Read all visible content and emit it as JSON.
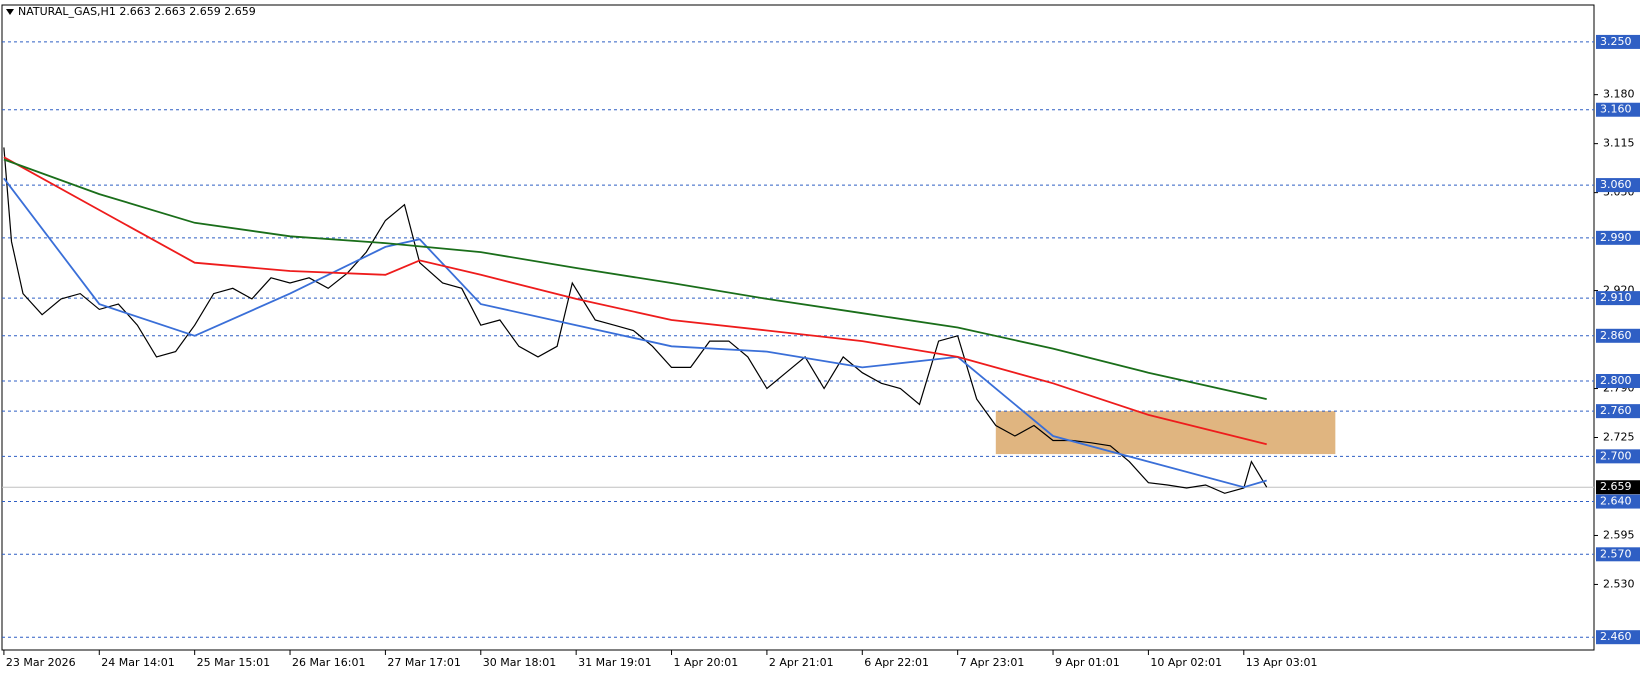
{
  "chart_data": {
    "type": "line",
    "title": "NATURAL_GAS,H1  2.663 2.663 2.659 2.659",
    "xlim": [
      -0.5,
      416.8
    ],
    "ylim": [
      2.443,
      3.299
    ],
    "xticks": [
      {
        "value": 0,
        "label": "23 Mar 2026"
      },
      {
        "value": 25,
        "label": "24 Mar 14:01"
      },
      {
        "value": 50,
        "label": "25 Mar 15:01"
      },
      {
        "value": 75,
        "label": "26 Mar 16:01"
      },
      {
        "value": 100,
        "label": "27 Mar 17:01"
      },
      {
        "value": 125,
        "label": "30 Mar 18:01"
      },
      {
        "value": 150,
        "label": "31 Mar 19:01"
      },
      {
        "value": 175,
        "label": "1 Apr 20:01"
      },
      {
        "value": 200,
        "label": "2 Apr 21:01"
      },
      {
        "value": 225,
        "label": "6 Apr 22:01"
      },
      {
        "value": 250,
        "label": "7 Apr 23:01"
      },
      {
        "value": 275,
        "label": "9 Apr 01:01"
      },
      {
        "value": 300,
        "label": "10 Apr 02:01"
      },
      {
        "value": 325,
        "label": "13 Apr 03:01"
      }
    ],
    "yticks": [
      {
        "value": 3.18,
        "label": "3.180"
      },
      {
        "value": 3.115,
        "label": "3.115"
      },
      {
        "value": 3.05,
        "label": "3.050"
      },
      {
        "value": 2.92,
        "label": "2.920"
      },
      {
        "value": 2.79,
        "label": "2.790"
      },
      {
        "value": 2.725,
        "label": "2.725"
      },
      {
        "value": 2.595,
        "label": "2.595"
      },
      {
        "value": 2.53,
        "label": "2.530"
      }
    ],
    "levels": [
      {
        "value": 3.25,
        "label": "3.250"
      },
      {
        "value": 3.16,
        "label": "3.160"
      },
      {
        "value": 3.06,
        "label": "3.060"
      },
      {
        "value": 2.99,
        "label": "2.990"
      },
      {
        "value": 2.91,
        "label": "2.910"
      },
      {
        "value": 2.86,
        "label": "2.860"
      },
      {
        "value": 2.8,
        "label": "2.800"
      },
      {
        "value": 2.76,
        "label": "2.760"
      },
      {
        "value": 2.7,
        "label": "2.700"
      },
      {
        "value": 2.64,
        "label": "2.640"
      },
      {
        "value": 2.57,
        "label": "2.570"
      },
      {
        "value": 2.46,
        "label": "2.460"
      }
    ],
    "level_color": "#2f5fc4",
    "current_price": {
      "value": 2.659,
      "label": "2.659"
    },
    "zone": {
      "x": [
        260,
        349
      ],
      "y": [
        2.703,
        2.76
      ],
      "color": "#e0b580"
    },
    "series": [
      {
        "color": "#000000",
        "x": [
          0,
          2,
          5,
          10,
          15,
          20,
          25,
          30,
          35,
          40,
          45,
          50,
          55,
          60,
          65,
          70,
          75,
          80,
          85,
          90,
          95,
          100,
          105,
          109,
          115,
          120,
          125,
          130,
          135,
          140,
          145,
          149,
          155,
          160,
          165,
          170,
          175,
          180,
          185,
          190,
          195,
          200,
          205,
          210,
          215,
          220,
          225,
          230,
          235,
          240,
          245,
          250,
          255,
          260,
          265,
          270,
          275,
          280,
          285,
          290,
          295,
          300,
          305,
          310,
          315,
          320,
          325,
          327,
          331
        ],
        "values": [
          3.11,
          2.985,
          2.916,
          2.888,
          2.909,
          2.916,
          2.895,
          2.902,
          2.874,
          2.832,
          2.839,
          2.874,
          2.916,
          2.923,
          2.909,
          2.937,
          2.93,
          2.937,
          2.923,
          2.943,
          2.971,
          3.013,
          3.034,
          2.957,
          2.93,
          2.923,
          2.874,
          2.881,
          2.846,
          2.832,
          2.846,
          2.93,
          2.881,
          2.874,
          2.867,
          2.846,
          2.818,
          2.818,
          2.853,
          2.853,
          2.832,
          2.79,
          2.811,
          2.832,
          2.79,
          2.832,
          2.811,
          2.797,
          2.79,
          2.769,
          2.853,
          2.86,
          2.776,
          2.741,
          2.727,
          2.741,
          2.721,
          2.721,
          2.718,
          2.714,
          2.693,
          2.665,
          2.662,
          2.658,
          2.662,
          2.651,
          2.658,
          2.693,
          2.659
        ]
      },
      {
        "color": "#3a6fd8",
        "x": [
          0,
          25,
          50,
          75,
          100,
          109,
          125,
          150,
          175,
          200,
          225,
          250,
          275,
          300,
          325,
          331
        ],
        "values": [
          3.069,
          2.902,
          2.86,
          2.916,
          2.978,
          2.988,
          2.902,
          2.874,
          2.846,
          2.839,
          2.818,
          2.832,
          2.727,
          2.693,
          2.659,
          2.668
        ]
      },
      {
        "color": "#ee1c1c",
        "x": [
          0,
          25,
          50,
          75,
          100,
          109,
          125,
          150,
          175,
          200,
          225,
          250,
          275,
          300,
          331
        ],
        "values": [
          3.097,
          3.027,
          2.957,
          2.946,
          2.941,
          2.96,
          2.941,
          2.909,
          2.881,
          2.867,
          2.853,
          2.832,
          2.797,
          2.755,
          2.716
        ]
      },
      {
        "color": "#1a6e1a",
        "x": [
          0,
          25,
          50,
          75,
          100,
          125,
          150,
          175,
          200,
          225,
          250,
          275,
          300,
          331
        ],
        "values": [
          3.094,
          3.048,
          3.01,
          2.992,
          2.983,
          2.971,
          2.95,
          2.93,
          2.909,
          2.89,
          2.871,
          2.843,
          2.811,
          2.776
        ]
      }
    ]
  }
}
